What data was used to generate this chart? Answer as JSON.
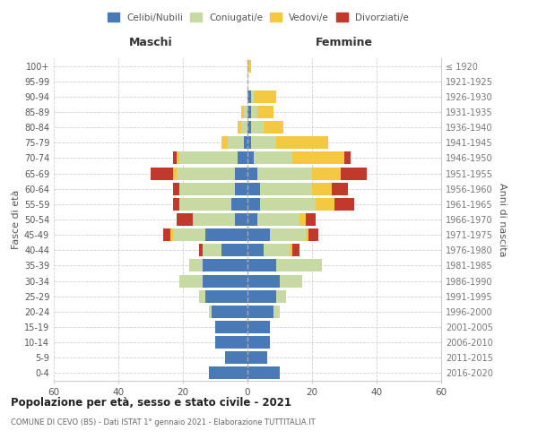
{
  "age_groups": [
    "0-4",
    "5-9",
    "10-14",
    "15-19",
    "20-24",
    "25-29",
    "30-34",
    "35-39",
    "40-44",
    "45-49",
    "50-54",
    "55-59",
    "60-64",
    "65-69",
    "70-74",
    "75-79",
    "80-84",
    "85-89",
    "90-94",
    "95-99",
    "100+"
  ],
  "birth_years": [
    "2016-2020",
    "2011-2015",
    "2006-2010",
    "2001-2005",
    "1996-2000",
    "1991-1995",
    "1986-1990",
    "1981-1985",
    "1976-1980",
    "1971-1975",
    "1966-1970",
    "1961-1965",
    "1956-1960",
    "1951-1955",
    "1946-1950",
    "1941-1945",
    "1936-1940",
    "1931-1935",
    "1926-1930",
    "1921-1925",
    "≤ 1920"
  ],
  "colors": {
    "celibe": "#4a7ab5",
    "coniugato": "#c8daa4",
    "vedovo": "#f5c842",
    "divorziato": "#c0392b"
  },
  "male": {
    "celibe": [
      12,
      7,
      10,
      10,
      11,
      13,
      14,
      14,
      8,
      13,
      4,
      5,
      4,
      4,
      3,
      1,
      0,
      0,
      0,
      0,
      0
    ],
    "coniugato": [
      0,
      0,
      0,
      0,
      1,
      2,
      7,
      4,
      6,
      10,
      13,
      16,
      17,
      18,
      18,
      5,
      2,
      1,
      0,
      0,
      0
    ],
    "vedovo": [
      0,
      0,
      0,
      0,
      0,
      0,
      0,
      0,
      0,
      1,
      0,
      0,
      0,
      1,
      1,
      2,
      1,
      1,
      0,
      0,
      0
    ],
    "divorziato": [
      0,
      0,
      0,
      0,
      0,
      0,
      0,
      0,
      1,
      2,
      5,
      2,
      2,
      7,
      1,
      0,
      0,
      0,
      0,
      0,
      0
    ]
  },
  "female": {
    "nubile": [
      10,
      6,
      7,
      7,
      8,
      9,
      10,
      9,
      5,
      7,
      3,
      4,
      4,
      3,
      2,
      1,
      1,
      1,
      1,
      0,
      0
    ],
    "coniugata": [
      0,
      0,
      0,
      0,
      2,
      3,
      7,
      14,
      8,
      11,
      13,
      17,
      16,
      17,
      12,
      8,
      4,
      2,
      1,
      0,
      0
    ],
    "vedova": [
      0,
      0,
      0,
      0,
      0,
      0,
      0,
      0,
      1,
      1,
      2,
      6,
      6,
      9,
      16,
      16,
      6,
      5,
      7,
      0,
      1
    ],
    "divorziata": [
      0,
      0,
      0,
      0,
      0,
      0,
      0,
      0,
      2,
      3,
      3,
      6,
      5,
      8,
      2,
      0,
      0,
      0,
      0,
      0,
      0
    ]
  },
  "title": "Popolazione per età, sesso e stato civile - 2021",
  "subtitle": "COMUNE DI CEVO (BS) - Dati ISTAT 1° gennaio 2021 - Elaborazione TUTTITALIA.IT",
  "xlabel_left": "Maschi",
  "xlabel_right": "Femmine",
  "ylabel_left": "Fasce di età",
  "ylabel_right": "Anni di nascita",
  "xlim": 60,
  "legend_labels": [
    "Celibi/Nubili",
    "Coniugati/e",
    "Vedovi/e",
    "Divorziati/e"
  ],
  "background_color": "#ffffff",
  "grid_color": "#cccccc"
}
